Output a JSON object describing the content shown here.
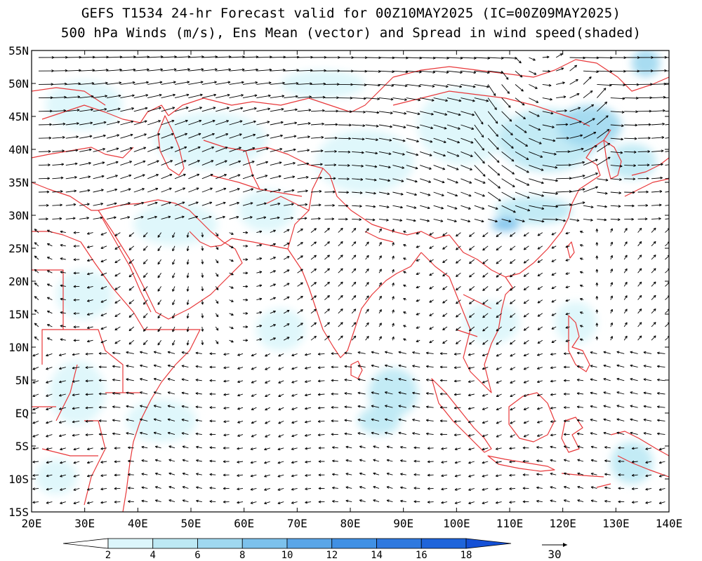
{
  "title_line1": "GEFS T1534 24-hr Forecast valid for 00Z10MAY2025 (IC=00Z09MAY2025)",
  "title_line2": "500 hPa Winds (m/s), Ens Mean (vector) and Spread in wind speed(shaded)",
  "lon_labels": [
    "20E",
    "30E",
    "40E",
    "50E",
    "60E",
    "70E",
    "80E",
    "90E",
    "100E",
    "110E",
    "120E",
    "130E",
    "140E"
  ],
  "lat_labels": [
    "55N",
    "50N",
    "45N",
    "40N",
    "35N",
    "30N",
    "25N",
    "20N",
    "15N",
    "10N",
    "5N",
    "EQ",
    "5S",
    "10S",
    "15S"
  ],
  "colorbar": {
    "labels": [
      "2",
      "4",
      "6",
      "8",
      "10",
      "12",
      "14",
      "16",
      "18"
    ],
    "colors": [
      "#ffffff",
      "#dcf6fb",
      "#bde9f4",
      "#9fd8f0",
      "#7cc1ec",
      "#5aa6e8",
      "#4090e4",
      "#2f79df",
      "#1e64da",
      "#1450d6"
    ]
  },
  "vector_reference": "30",
  "colors": {
    "coastline": "#e8383a",
    "vector": "#000000",
    "frame": "#000000"
  }
}
